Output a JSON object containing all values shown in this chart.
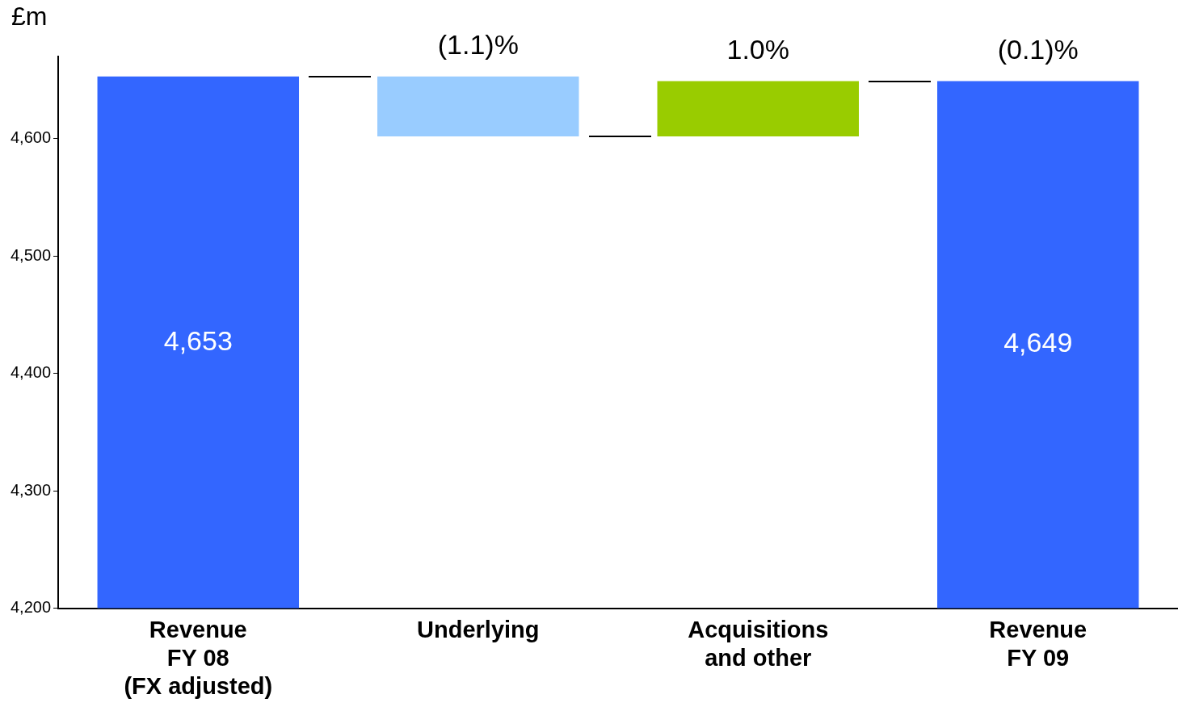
{
  "chart_data": {
    "type": "bar",
    "ylabel": "£m",
    "categories": [
      "Revenue\nFY 08\n(FX adjusted)",
      "Underlying",
      "Acquisitions\nand other",
      "Revenue\nFY 09"
    ],
    "values": [
      4653,
      -51,
      47,
      4649
    ],
    "base": [
      null,
      4653,
      4602,
      null
    ],
    "colors": [
      "#3366ff",
      "#99ccff",
      "#99cc00",
      "#3366ff"
    ],
    "value_labels": [
      "4,653",
      null,
      null,
      "4,649"
    ],
    "annotations": [
      {
        "text": "(1.1)%",
        "x": "Underlying",
        "y": 4653
      },
      {
        "text": "1.0%",
        "x": "Acquisitions\nand other",
        "y": 4649
      },
      {
        "text": "(0.1)%",
        "x": "Revenue\nFY 09",
        "y": 4649
      }
    ],
    "ylim": [
      4200,
      4670
    ],
    "yticks": [
      {
        "value": 4200,
        "label": "4,200"
      },
      {
        "value": 4300,
        "label": "4,300"
      },
      {
        "value": 4400,
        "label": "4,400"
      },
      {
        "value": 4500,
        "label": "4,500"
      },
      {
        "value": 4600,
        "label": "4,600"
      }
    ],
    "grid": false,
    "legend": false
  }
}
